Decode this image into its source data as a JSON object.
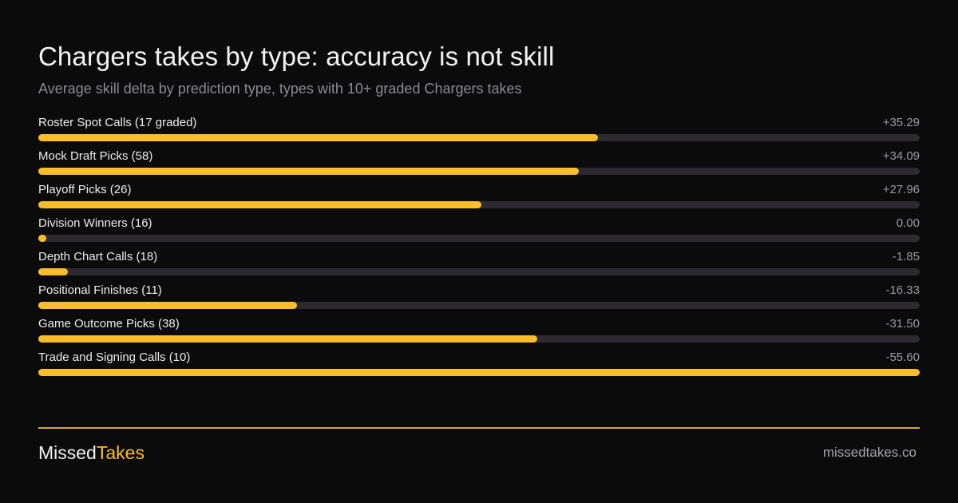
{
  "header": {
    "title": "Chargers takes by type: accuracy is not skill",
    "subtitle": "Average skill delta by prediction type, types with 10+ graded Chargers takes"
  },
  "chart_data": {
    "type": "bar",
    "title": "Chargers takes by type: accuracy is not skill",
    "subtitle": "Average skill delta by prediction type, types with 10+ graded Chargers takes",
    "orientation": "horizontal",
    "bar_scale": "absolute value, longest bar = largest magnitude",
    "categories": [
      "Roster Spot Calls (17 graded)",
      "Mock Draft Picks (58)",
      "Playoff Picks (26)",
      "Division Winners (16)",
      "Depth Chart Calls (18)",
      "Positional Finishes (11)",
      "Game Outcome Picks (38)",
      "Trade and Signing Calls (10)"
    ],
    "values": [
      35.29,
      34.09,
      27.96,
      0.0,
      -1.85,
      -16.33,
      -31.5,
      -55.6
    ],
    "value_labels": [
      "+35.29",
      "+34.09",
      "+27.96",
      "0.00",
      "-1.85",
      "-16.33",
      "-31.50",
      "-55.60"
    ],
    "grid": false,
    "colors": {
      "bar": "#fbbd2a",
      "track": "#2c2a30",
      "background": "#0b0b0b"
    }
  },
  "footer": {
    "brand_part1": "Missed",
    "brand_part2": "Takes",
    "site": "missedtakes.co"
  }
}
